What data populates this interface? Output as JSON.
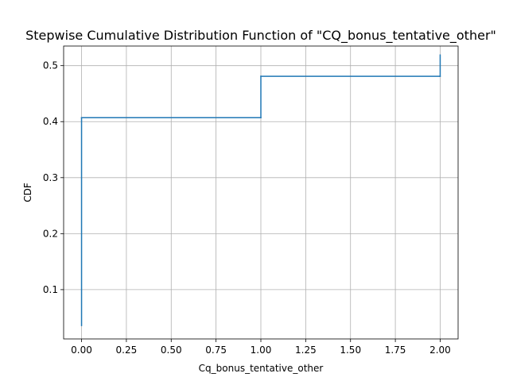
{
  "chart_data": {
    "type": "line",
    "style": "step",
    "title": "Stepwise Cumulative Distribution Function of \"CQ_bonus_tentative_other\"",
    "xlabel": "Cq_bonus_tentative_other",
    "ylabel": "CDF",
    "xlim": [
      -0.1,
      2.1
    ],
    "ylim": [
      0.012,
      0.535
    ],
    "xticks": [
      0.0,
      0.25,
      0.5,
      0.75,
      1.0,
      1.25,
      1.5,
      1.75,
      2.0
    ],
    "xtick_labels": [
      "0.00",
      "0.25",
      "0.50",
      "0.75",
      "1.00",
      "1.25",
      "1.50",
      "1.75",
      "2.00"
    ],
    "yticks": [
      0.1,
      0.2,
      0.3,
      0.4,
      0.5
    ],
    "ytick_labels": [
      "0.1",
      "0.2",
      "0.3",
      "0.4",
      "0.5"
    ],
    "grid": true,
    "series": [
      {
        "color": "#1f77b4",
        "x": [
          0.0,
          0.0,
          0.0,
          1.0,
          1.0,
          2.0,
          2.0
        ],
        "y": [
          0.036,
          0.407,
          0.407,
          0.407,
          0.481,
          0.481,
          0.519
        ]
      }
    ]
  }
}
